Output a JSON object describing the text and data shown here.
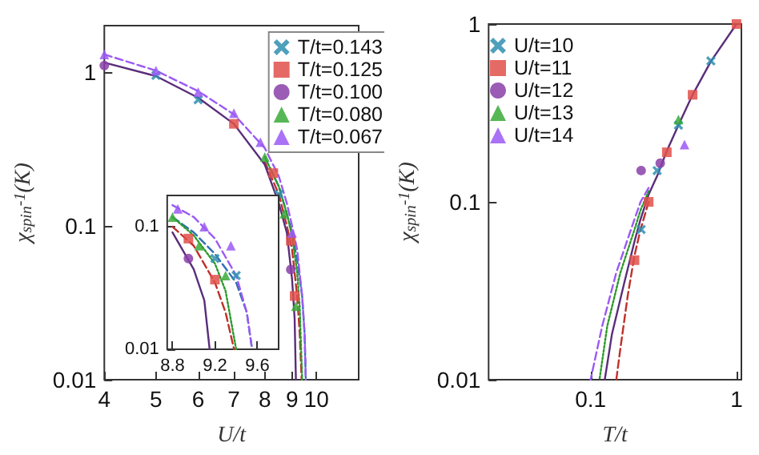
{
  "chart_data": [
    {
      "type": "scatter",
      "xlabel": "U/t",
      "ylabel": "χ$_{spin}$$^{-1}$(K)",
      "log": "xy",
      "xlim": [
        4,
        12
      ],
      "ylim": [
        0.01,
        2
      ],
      "xticks": [
        4,
        5,
        6,
        7,
        8,
        9,
        10
      ],
      "yticks": [
        0.01,
        0.1,
        1
      ],
      "grid": false,
      "legend": "top right",
      "series": [
        {
          "name": "T/t=0.143",
          "color": "#2f8fb0",
          "marker": "cross",
          "x": [
            5,
            6,
            8.5
          ],
          "values": [
            0.95,
            0.66,
            0.16
          ]
        },
        {
          "name": "T/t=0.125",
          "color": "#e0504a",
          "marker": "square",
          "x": [
            7,
            8.3,
            8.95,
            9.1
          ],
          "values": [
            0.46,
            0.22,
            0.08,
            0.035
          ]
        },
        {
          "name": "T/t=0.100",
          "color": "#8a3fa8",
          "marker": "circle",
          "x": [
            4,
            8.95
          ],
          "values": [
            1.1,
            0.052
          ]
        },
        {
          "name": "T/t=0.080",
          "color": "#3aaa3a",
          "marker": "triangle",
          "x": [
            8,
            8.7,
            9.15
          ],
          "values": [
            0.28,
            0.12,
            0.03
          ]
        },
        {
          "name": "T/t=0.067",
          "color": "#9b59f5",
          "marker": "triangle",
          "x": [
            4,
            5,
            6,
            7,
            7.85,
            9.0
          ],
          "values": [
            1.3,
            1.02,
            0.74,
            0.54,
            0.35,
            0.09
          ]
        },
        {
          "type": "line",
          "color": "#2f6fb0",
          "marker": "none",
          "line_style": "dashed",
          "x": [
            8,
            8.5,
            8.8,
            9.0,
            9.2,
            9.4,
            9.5,
            9.55
          ],
          "values": [
            0.28,
            0.18,
            0.12,
            0.09,
            0.06,
            0.035,
            0.02,
            0.01
          ]
        },
        {
          "type": "line",
          "color": "#c0302a",
          "marker": "none",
          "line_style": "dashed",
          "x": [
            8,
            8.5,
            8.8,
            9.0,
            9.2,
            9.3,
            9.38
          ],
          "values": [
            0.26,
            0.16,
            0.1,
            0.07,
            0.035,
            0.02,
            0.01
          ]
        },
        {
          "type": "line",
          "color": "#5a2d7a",
          "marker": "none",
          "line_style": "solid",
          "x": [
            4,
            5,
            6,
            7,
            8,
            8.5,
            8.8,
            9.0,
            9.1,
            9.15
          ],
          "values": [
            1.15,
            0.94,
            0.68,
            0.46,
            0.25,
            0.14,
            0.09,
            0.045,
            0.025,
            0.01
          ]
        },
        {
          "type": "line",
          "color": "#2a9a2a",
          "marker": "none",
          "line_style": "dotted",
          "x": [
            8,
            8.5,
            8.8,
            9.0,
            9.2,
            9.3,
            9.4
          ],
          "values": [
            0.28,
            0.18,
            0.12,
            0.085,
            0.05,
            0.03,
            0.01
          ]
        },
        {
          "type": "line",
          "color": "#9b59f5",
          "marker": "none",
          "line_style": "dashed",
          "x": [
            4,
            5,
            6,
            7,
            8,
            8.5,
            8.8,
            9.0,
            9.2,
            9.4,
            9.5,
            9.55
          ],
          "values": [
            1.3,
            1.02,
            0.75,
            0.53,
            0.32,
            0.21,
            0.14,
            0.1,
            0.07,
            0.035,
            0.02,
            0.01
          ]
        }
      ]
    },
    {
      "type": "scatter",
      "log": "y",
      "xlim": [
        8.75,
        9.8
      ],
      "ylim": [
        0.01,
        0.18
      ],
      "xticks": [
        8.8,
        9.2,
        9.6
      ],
      "yticks": [
        0.01,
        0.1
      ],
      "grid": false,
      "series": [
        {
          "color": "#2f8fb0",
          "marker": "cross",
          "x": [
            9.2,
            9.4
          ],
          "values": [
            0.055,
            0.04
          ]
        },
        {
          "color": "#e0504a",
          "marker": "square",
          "x": [
            8.95,
            9.2
          ],
          "values": [
            0.08,
            0.037
          ]
        },
        {
          "color": "#8a3fa8",
          "marker": "circle",
          "x": [
            8.95
          ],
          "values": [
            0.055
          ]
        },
        {
          "color": "#3aaa3a",
          "marker": "triangle",
          "x": [
            8.8,
            9.05,
            9.3
          ],
          "values": [
            0.12,
            0.07,
            0.04
          ]
        },
        {
          "color": "#9b59f5",
          "marker": "triangle",
          "x": [
            8.85,
            9.1,
            9.35
          ],
          "values": [
            0.14,
            0.1,
            0.07
          ]
        },
        {
          "type": "line",
          "color": "#2f6fb0",
          "marker": "none",
          "line_style": "dashed",
          "x": [
            8.8,
            9.0,
            9.2,
            9.4,
            9.5,
            9.55
          ],
          "values": [
            0.12,
            0.09,
            0.06,
            0.035,
            0.02,
            0.01
          ]
        },
        {
          "type": "line",
          "color": "#c0302a",
          "marker": "none",
          "line_style": "dashed",
          "x": [
            8.8,
            9.0,
            9.2,
            9.3,
            9.38
          ],
          "values": [
            0.1,
            0.07,
            0.035,
            0.02,
            0.01
          ]
        },
        {
          "type": "line",
          "color": "#5a2d7a",
          "marker": "none",
          "line_style": "solid",
          "x": [
            8.8,
            9.0,
            9.1,
            9.15
          ],
          "values": [
            0.09,
            0.045,
            0.025,
            0.01
          ]
        },
        {
          "type": "line",
          "color": "#2a9a2a",
          "marker": "none",
          "line_style": "dotted",
          "x": [
            8.8,
            9.0,
            9.2,
            9.3,
            9.4
          ],
          "values": [
            0.12,
            0.085,
            0.05,
            0.03,
            0.01
          ]
        },
        {
          "type": "line",
          "color": "#9b59f5",
          "marker": "none",
          "line_style": "dashed",
          "x": [
            8.8,
            9.0,
            9.2,
            9.4,
            9.5,
            9.55
          ],
          "values": [
            0.15,
            0.12,
            0.08,
            0.04,
            0.02,
            0.01
          ]
        }
      ]
    },
    {
      "type": "scatter",
      "xlabel": "T/t",
      "ylabel": "χ$_{spin}$$^{-1}$(K)",
      "log": "xy",
      "xlim": [
        0.02,
        1.08
      ],
      "ylim": [
        0.01,
        1
      ],
      "xticks": [
        0.1,
        1
      ],
      "yticks": [
        0.01,
        0.1,
        1
      ],
      "grid": false,
      "legend": "top left",
      "series": [
        {
          "name": "U/t=10",
          "color": "#2f8fb0",
          "marker": "cross",
          "x": [
            0.667,
            0.4,
            0.286,
            0.222
          ],
          "values": [
            0.62,
            0.27,
            0.15,
            0.07
          ]
        },
        {
          "name": "U/t=11",
          "color": "#e0504a",
          "marker": "square",
          "x": [
            1,
            0.5,
            0.333,
            0.25,
            0.2
          ],
          "values": [
            1,
            0.4,
            0.19,
            0.1,
            0.047
          ]
        },
        {
          "name": "U/t=12",
          "color": "#8a3fa8",
          "marker": "circle",
          "x": [
            0.3,
            0.222
          ],
          "values": [
            0.165,
            0.15
          ]
        },
        {
          "name": "U/t=13",
          "color": "#3aaa3a",
          "marker": "triangle",
          "x": [
            0.4
          ],
          "values": [
            0.29
          ]
        },
        {
          "name": "U/t=14",
          "color": "#9b59f5",
          "marker": "triangle",
          "x": [
            0.44
          ],
          "values": [
            0.21
          ]
        },
        {
          "type": "line",
          "color": "#c0302a",
          "marker": "none",
          "line_style": "dashed",
          "x": [
            0.25,
            0.22,
            0.2,
            0.18,
            0.16,
            0.15
          ],
          "values": [
            0.1,
            0.07,
            0.05,
            0.03,
            0.015,
            0.01
          ]
        },
        {
          "type": "line",
          "color": "#5a2d7a",
          "marker": "none",
          "line_style": "solid",
          "x": [
            1,
            0.67,
            0.5,
            0.4,
            0.33,
            0.286,
            0.25,
            0.22,
            0.2,
            0.17,
            0.14,
            0.125
          ],
          "values": [
            1,
            0.62,
            0.4,
            0.27,
            0.19,
            0.14,
            0.11,
            0.08,
            0.06,
            0.035,
            0.018,
            0.01
          ]
        },
        {
          "type": "line",
          "color": "#2a9a2a",
          "marker": "none",
          "line_style": "dotted",
          "x": [
            0.25,
            0.22,
            0.2,
            0.16,
            0.13,
            0.115
          ],
          "values": [
            0.115,
            0.09,
            0.07,
            0.04,
            0.02,
            0.01
          ]
        },
        {
          "type": "line",
          "color": "#9b59f5",
          "marker": "none",
          "line_style": "dashed",
          "x": [
            0.25,
            0.22,
            0.2,
            0.15,
            0.12,
            0.1
          ],
          "values": [
            0.12,
            0.1,
            0.08,
            0.04,
            0.02,
            0.01
          ]
        }
      ]
    }
  ]
}
